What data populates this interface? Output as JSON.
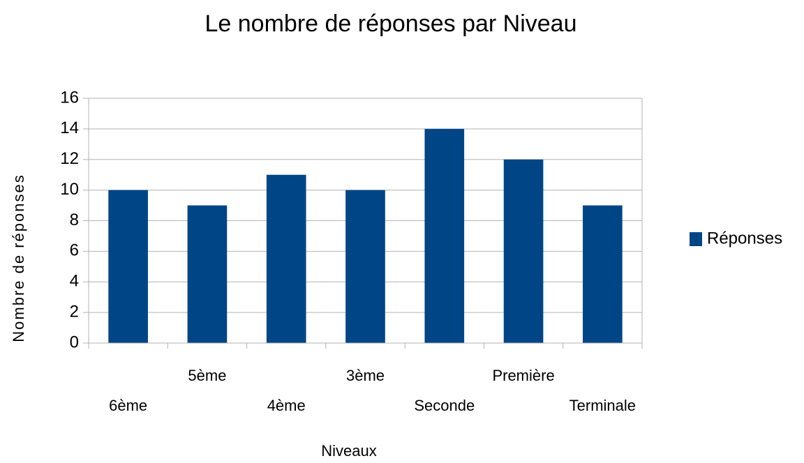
{
  "chart_data": {
    "type": "bar",
    "title": "Le nombre de réponses par Niveau",
    "categories": [
      "6ème",
      "5ème",
      "4ème",
      "3ème",
      "Seconde",
      "Première",
      "Terminale"
    ],
    "series": [
      {
        "name": "Réponses",
        "color": "#004586",
        "values": [
          10,
          9,
          11,
          10,
          14,
          12,
          9
        ]
      }
    ],
    "x_label": "Niveaux",
    "y_label": "Nombre de réponses",
    "ylim": [
      0,
      16
    ],
    "yticks": [
      0,
      2,
      4,
      6,
      8,
      10,
      12,
      14,
      16
    ],
    "grid": true,
    "legend": "right"
  }
}
